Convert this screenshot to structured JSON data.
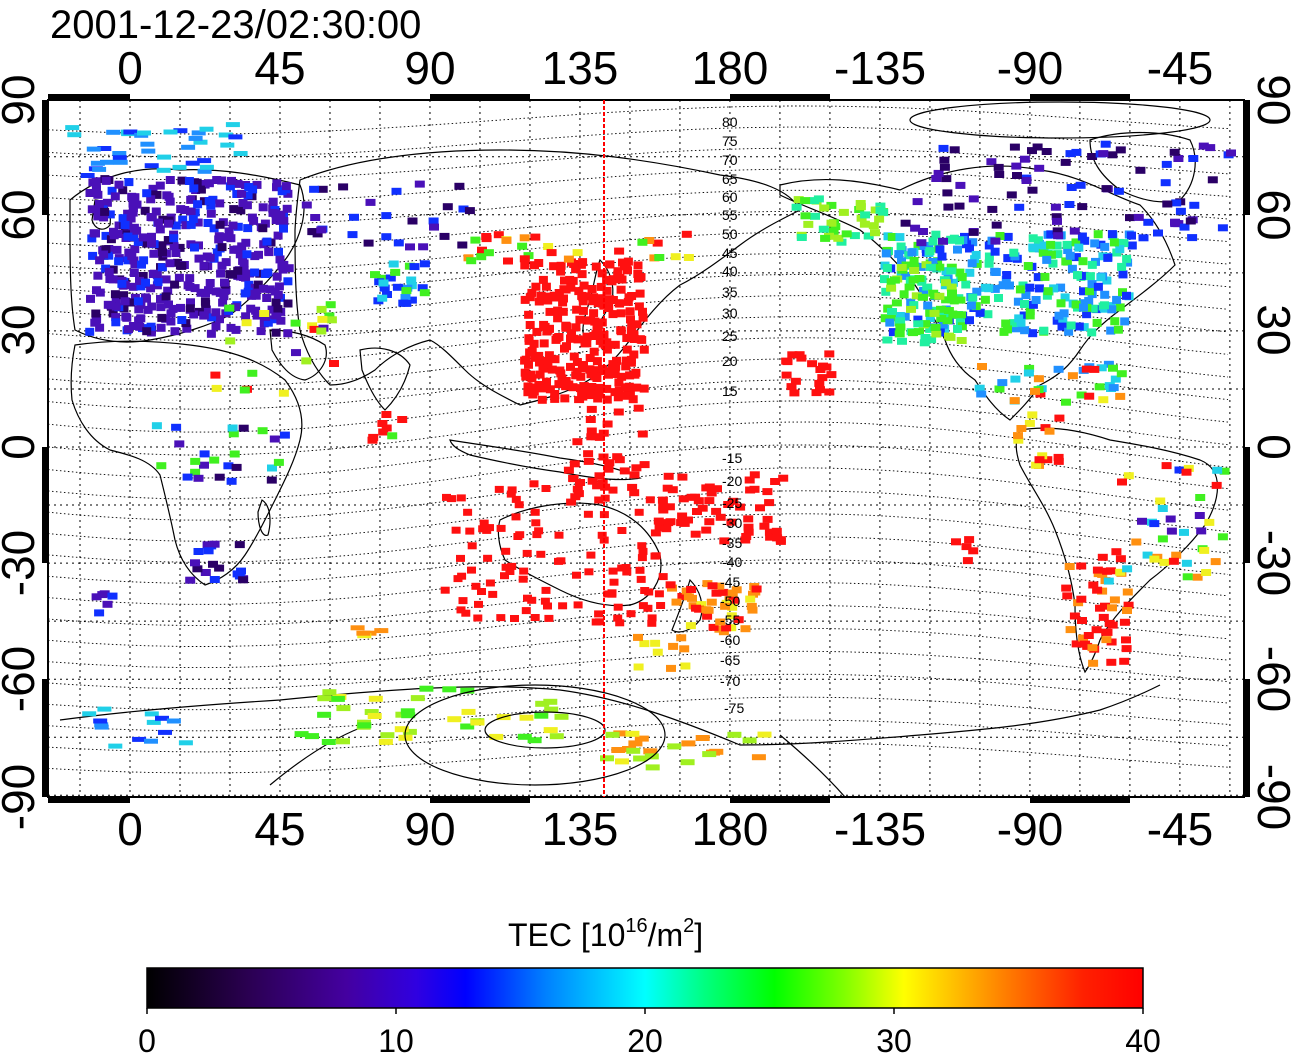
{
  "title": "2001-12-23/02:30:00",
  "map": {
    "lon_labels_top": [
      "0",
      "45",
      "90",
      "135",
      "180",
      "-135",
      "-90",
      "-45"
    ],
    "lon_labels_bottom": [
      "0",
      "45",
      "90",
      "135",
      "180",
      "-135",
      "-90",
      "-45"
    ],
    "lat_labels_left": [
      "90",
      "60",
      "30",
      "0",
      "-30",
      "-60",
      "-90"
    ],
    "lat_labels_right": [
      "90",
      "60",
      "30",
      "0",
      "-30",
      "-60",
      "-90"
    ],
    "magnetic_latitude_labels": [
      "80",
      "75",
      "70",
      "65",
      "60",
      "55",
      "50",
      "45",
      "40",
      "35",
      "30",
      "25",
      "20",
      "15",
      "-15",
      "-20",
      "-25",
      "-30",
      "-35",
      "-40",
      "-45",
      "-50",
      "-55",
      "-60",
      "-65",
      "-70",
      "-75"
    ],
    "local_noon_marker": "red vertical line",
    "colors": {
      "marker_line": "#ff0000",
      "grid": "#000000"
    }
  },
  "colorbar": {
    "label_prefix": "TEC  [10",
    "label_exp": "16",
    "label_mid": "/m",
    "label_exp2": "2",
    "label_suffix": "]",
    "ticks": [
      "0",
      "10",
      "20",
      "30",
      "40"
    ],
    "colormap": [
      "#000000",
      "#2a0050",
      "#5a00c8",
      "#0000ff",
      "#0080ff",
      "#00ffff",
      "#00ff80",
      "#00ff00",
      "#80ff00",
      "#ffff00",
      "#ff8000",
      "#ff0000"
    ]
  }
}
